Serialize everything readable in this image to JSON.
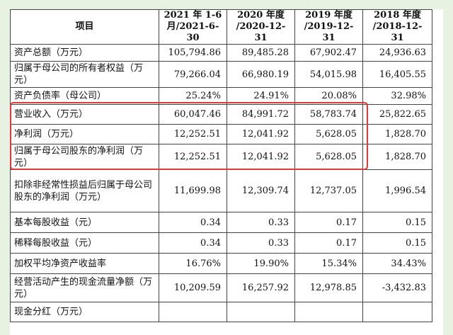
{
  "header": {
    "item": "项目",
    "col1": "2021 年 1-6 月/2021-6-30",
    "col2": "2020 年度 /2020-12-31",
    "col3": "2019 年度 /2019-12-31",
    "col4": "2018 年度 /2018-12-31"
  },
  "rows": [
    {
      "label": "资产总额（万元）",
      "v1": "105,794.86",
      "v2": "89,485.28",
      "v3": "67,902.47",
      "v4": "24,936.63"
    },
    {
      "label": "归属于母公司的所有者权益（万元）",
      "v1": "79,266.04",
      "v2": "66,980.19",
      "v3": "54,015.98",
      "v4": "16,405.55"
    },
    {
      "label": "资产负债率（母公司）",
      "v1": "25.24%",
      "v2": "24.91%",
      "v3": "20.08%",
      "v4": "32.98%"
    },
    {
      "label": "营业收入（万元）",
      "v1": "60,047.46",
      "v2": "84,991.72",
      "v3": "58,783.74",
      "v4": "25,822.65"
    },
    {
      "label": "净利润（万元）",
      "v1": "12,252.51",
      "v2": "12,041.92",
      "v3": "5,628.05",
      "v4": "1,828.70"
    },
    {
      "label": "归属于母公司股东的净利润（万元）",
      "v1": "12,252.51",
      "v2": "12,041.92",
      "v3": "5,628.05",
      "v4": "1,828.70"
    },
    {
      "label": "扣除非经常性损益后归属于母公司股东的净利润（万元）",
      "v1": "11,699.98",
      "v2": "12,309.74",
      "v3": "12,737.05",
      "v4": "1,996.54"
    },
    {
      "label": "基本每股收益（元）",
      "v1": "0.34",
      "v2": "0.33",
      "v3": "0.17",
      "v4": "0.15"
    },
    {
      "label": "稀释每股收益（元）",
      "v1": "0.34",
      "v2": "0.33",
      "v3": "0.17",
      "v4": "0.15"
    },
    {
      "label": "加权平均净资产收益率",
      "v1": "16.76%",
      "v2": "19.90%",
      "v3": "15.34%",
      "v4": "34.43%"
    },
    {
      "label": "经营活动产生的现金流量净额（万元）",
      "v1": "10,209.59",
      "v2": "16,257.92",
      "v3": "12,978.85",
      "v4": "-3,432.83"
    },
    {
      "label": "现金分红（万元）",
      "v1": "",
      "v2": "",
      "v3": "",
      "v4": ""
    }
  ],
  "highlight_color": "#e03b3b"
}
